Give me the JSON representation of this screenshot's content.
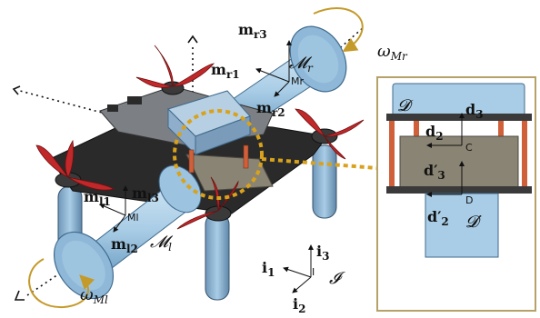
{
  "labels": {
    "m_r3": "m",
    "m_r3_sub": "r3",
    "m_r1": "m",
    "m_r1_sub": "r1",
    "m_r2": "m",
    "m_r2_sub": "r2",
    "M_r": "𝓜",
    "M_r_sub": "r",
    "Mr_origin": "Mr",
    "omega_Mr": "ω",
    "omega_Mr_sub": "Mr",
    "m_l1": "m",
    "m_l1_sub": "l1",
    "m_l3": "m",
    "m_l3_sub": "l3",
    "m_l2": "m",
    "m_l2_sub": "l2",
    "M_l": "𝓜",
    "M_l_sub": "l",
    "Ml_origin": "Ml",
    "omega_Ml": "ω",
    "omega_Ml_sub": "Ml",
    "i1": "i",
    "i1_sub": "1",
    "i2": "i",
    "i2_sub": "2",
    "i3": "i",
    "i3_sub": "3",
    "I_calligraphic": "𝓘",
    "I_origin": "I",
    "D_cal": "𝓓",
    "D_prime_cal": "𝓓′",
    "d2": "d",
    "d2_sub": "2",
    "d3": "d",
    "d3_sub": "3",
    "d2p": "d′",
    "d2p_sub": "2",
    "d3p": "d′",
    "d3p_sub": "3",
    "C_origin": "C",
    "D_origin": "D"
  },
  "colors": {
    "frame": "#2a2a2a",
    "arm_blue": "#a9cde6",
    "arm_blue_dark": "#6e9fc4",
    "propeller": "#c0282a",
    "inset_border": "#b5a268",
    "highlight_circle": "#d8a21c",
    "omega_arrow": "#c49a2a",
    "motor_grey": "#8b8f94",
    "payload_box": "#8a8474",
    "standoff": "#d0603a"
  },
  "icons": [
    "dashed-axis-arrow",
    "rotation-arrow",
    "coordinate-frame"
  ]
}
